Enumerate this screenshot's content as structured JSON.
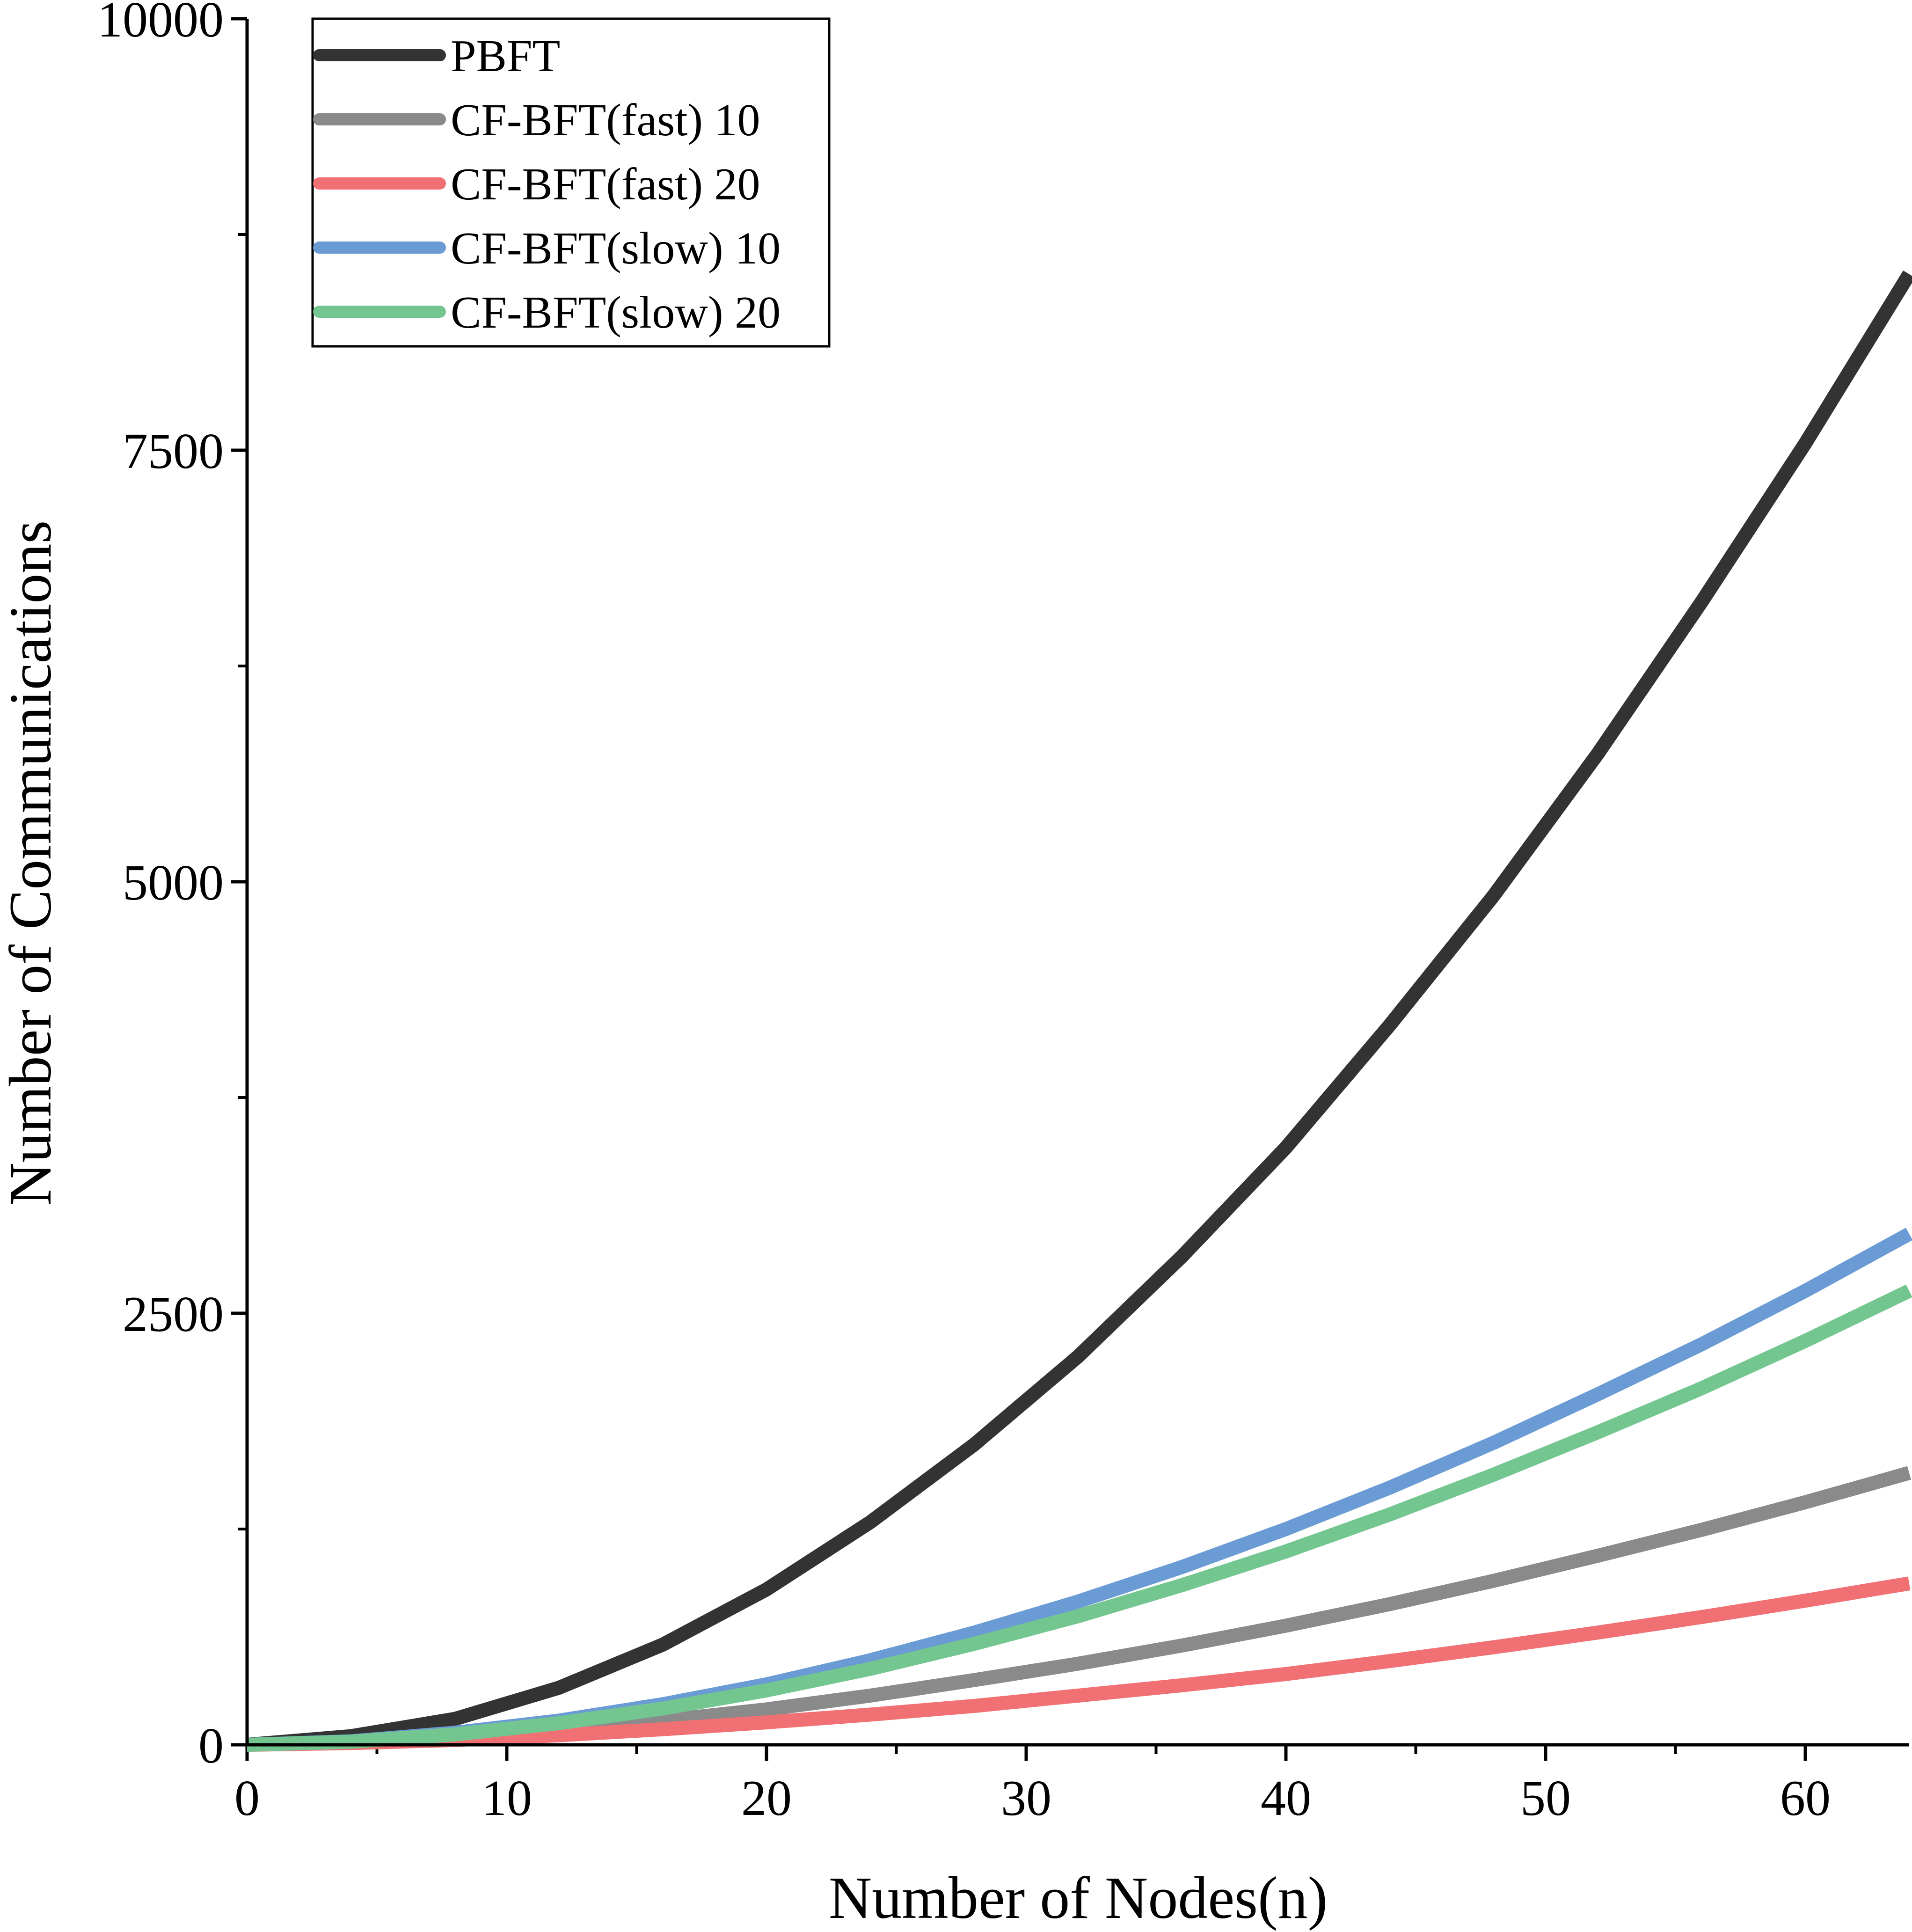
{
  "chart_data": {
    "type": "line",
    "title": "",
    "xlabel": "Number of Nodes(n)",
    "ylabel": "Number of Communications",
    "xlim": [
      0,
      64
    ],
    "ylim": [
      0,
      10000
    ],
    "x_ticks": [
      0,
      10,
      20,
      30,
      40,
      50,
      60
    ],
    "x_tick_labels": [
      "0",
      "10",
      "20",
      "30",
      "40",
      "50",
      "60"
    ],
    "x_minor_ticks": [
      5,
      15,
      25,
      35,
      45,
      55
    ],
    "y_ticks": [
      0,
      2500,
      5000,
      7500,
      10000
    ],
    "y_tick_labels": [
      "0",
      "2500",
      "5000",
      "7500",
      "10000"
    ],
    "y_minor_ticks": [
      1250,
      3750,
      6250,
      8750
    ],
    "grid": false,
    "legend_position": "top-left",
    "x": [
      0,
      4,
      8,
      12,
      16,
      20,
      24,
      28,
      32,
      36,
      40,
      44,
      48,
      52,
      56,
      60,
      64
    ],
    "series": [
      {
        "name": "PBFT",
        "color": "#333333",
        "values": [
          0,
          50,
          150,
          330,
          580,
          900,
          1290,
          1740,
          2250,
          2830,
          3460,
          4170,
          4920,
          5740,
          6620,
          7540,
          8520
        ]
      },
      {
        "name": "CF-BFT(fast) 10",
        "color": "#8a8a8a",
        "values": [
          0,
          15,
          40,
          85,
          140,
          205,
          285,
          375,
          470,
          575,
          690,
          815,
          950,
          1095,
          1245,
          1405,
          1575
        ]
      },
      {
        "name": "CF-BFT(fast) 20",
        "color": "#f07074",
        "values": [
          0,
          10,
          28,
          55,
          90,
          130,
          175,
          225,
          285,
          345,
          410,
          485,
          565,
          650,
          740,
          835,
          935
        ]
      },
      {
        "name": "CF-BFT(slow) 10",
        "color": "#6a9bd4",
        "values": [
          0,
          20,
          70,
          140,
          235,
          350,
          490,
          650,
          830,
          1030,
          1250,
          1490,
          1750,
          2030,
          2320,
          2630,
          2960
        ]
      },
      {
        "name": "CF-BFT(slow) 20",
        "color": "#74c690",
        "values": [
          0,
          18,
          60,
          125,
          210,
          315,
          440,
          585,
          745,
          925,
          1120,
          1335,
          1565,
          1810,
          2065,
          2340,
          2630
        ]
      }
    ]
  }
}
